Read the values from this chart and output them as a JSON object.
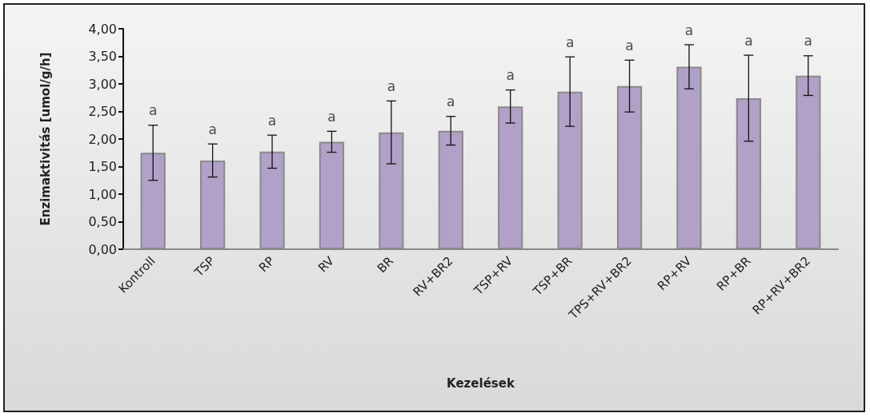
{
  "chart_data": {
    "type": "bar",
    "xlabel": "Kezelések",
    "ylabel": "Enzimaktivitás [umol/g/h]",
    "categories": [
      "Kontroll",
      "TSP",
      "RP",
      "RV",
      "BR",
      "RV+BR2",
      "TSP+RV",
      "TSP+BR",
      "TPS+RV+BR2",
      "RP+RV",
      "RP+BR",
      "RP+RV+BR2"
    ],
    "values": [
      1.75,
      1.61,
      1.77,
      1.95,
      2.12,
      2.15,
      2.59,
      2.86,
      2.96,
      3.31,
      2.74,
      3.15
    ],
    "errors": [
      0.5,
      0.3,
      0.3,
      0.19,
      0.57,
      0.26,
      0.3,
      0.63,
      0.47,
      0.4,
      0.78,
      0.36
    ],
    "color": "#b1a0c7",
    "ylim": [
      0,
      4
    ],
    "yticks": [
      {
        "value": 0,
        "label": "0,00"
      },
      {
        "value": 0.5,
        "label": "0,50"
      },
      {
        "value": 1,
        "label": "1,00"
      },
      {
        "value": 1.5,
        "label": "1,50"
      },
      {
        "value": 2,
        "label": "2,00"
      },
      {
        "value": 2.5,
        "label": "2,50"
      },
      {
        "value": 3,
        "label": "3,00"
      },
      {
        "value": 3.5,
        "label": "3,50"
      },
      {
        "value": 4,
        "label": "4,00"
      }
    ],
    "annotations": [
      {
        "text": "a",
        "x": "Kontroll",
        "y": 2.25
      },
      {
        "text": "a",
        "x": "TSP",
        "y": 1.91
      },
      {
        "text": "a",
        "x": "RP",
        "y": 2.07
      },
      {
        "text": "a",
        "x": "RV",
        "y": 2.14
      },
      {
        "text": "a",
        "x": "BR",
        "y": 2.69
      },
      {
        "text": "a",
        "x": "RV+BR2",
        "y": 2.41
      },
      {
        "text": "a",
        "x": "TSP+RV",
        "y": 2.89
      },
      {
        "text": "a",
        "x": "TSP+BR",
        "y": 3.49
      },
      {
        "text": "a",
        "x": "TPS+RV+BR2",
        "y": 3.43
      },
      {
        "text": "a",
        "x": "RP+RV",
        "y": 3.71
      },
      {
        "text": "a",
        "x": "RP+BR",
        "y": 3.52
      },
      {
        "text": "a",
        "x": "RP+RV+BR2",
        "y": 3.51
      }
    ],
    "grid": false
  }
}
